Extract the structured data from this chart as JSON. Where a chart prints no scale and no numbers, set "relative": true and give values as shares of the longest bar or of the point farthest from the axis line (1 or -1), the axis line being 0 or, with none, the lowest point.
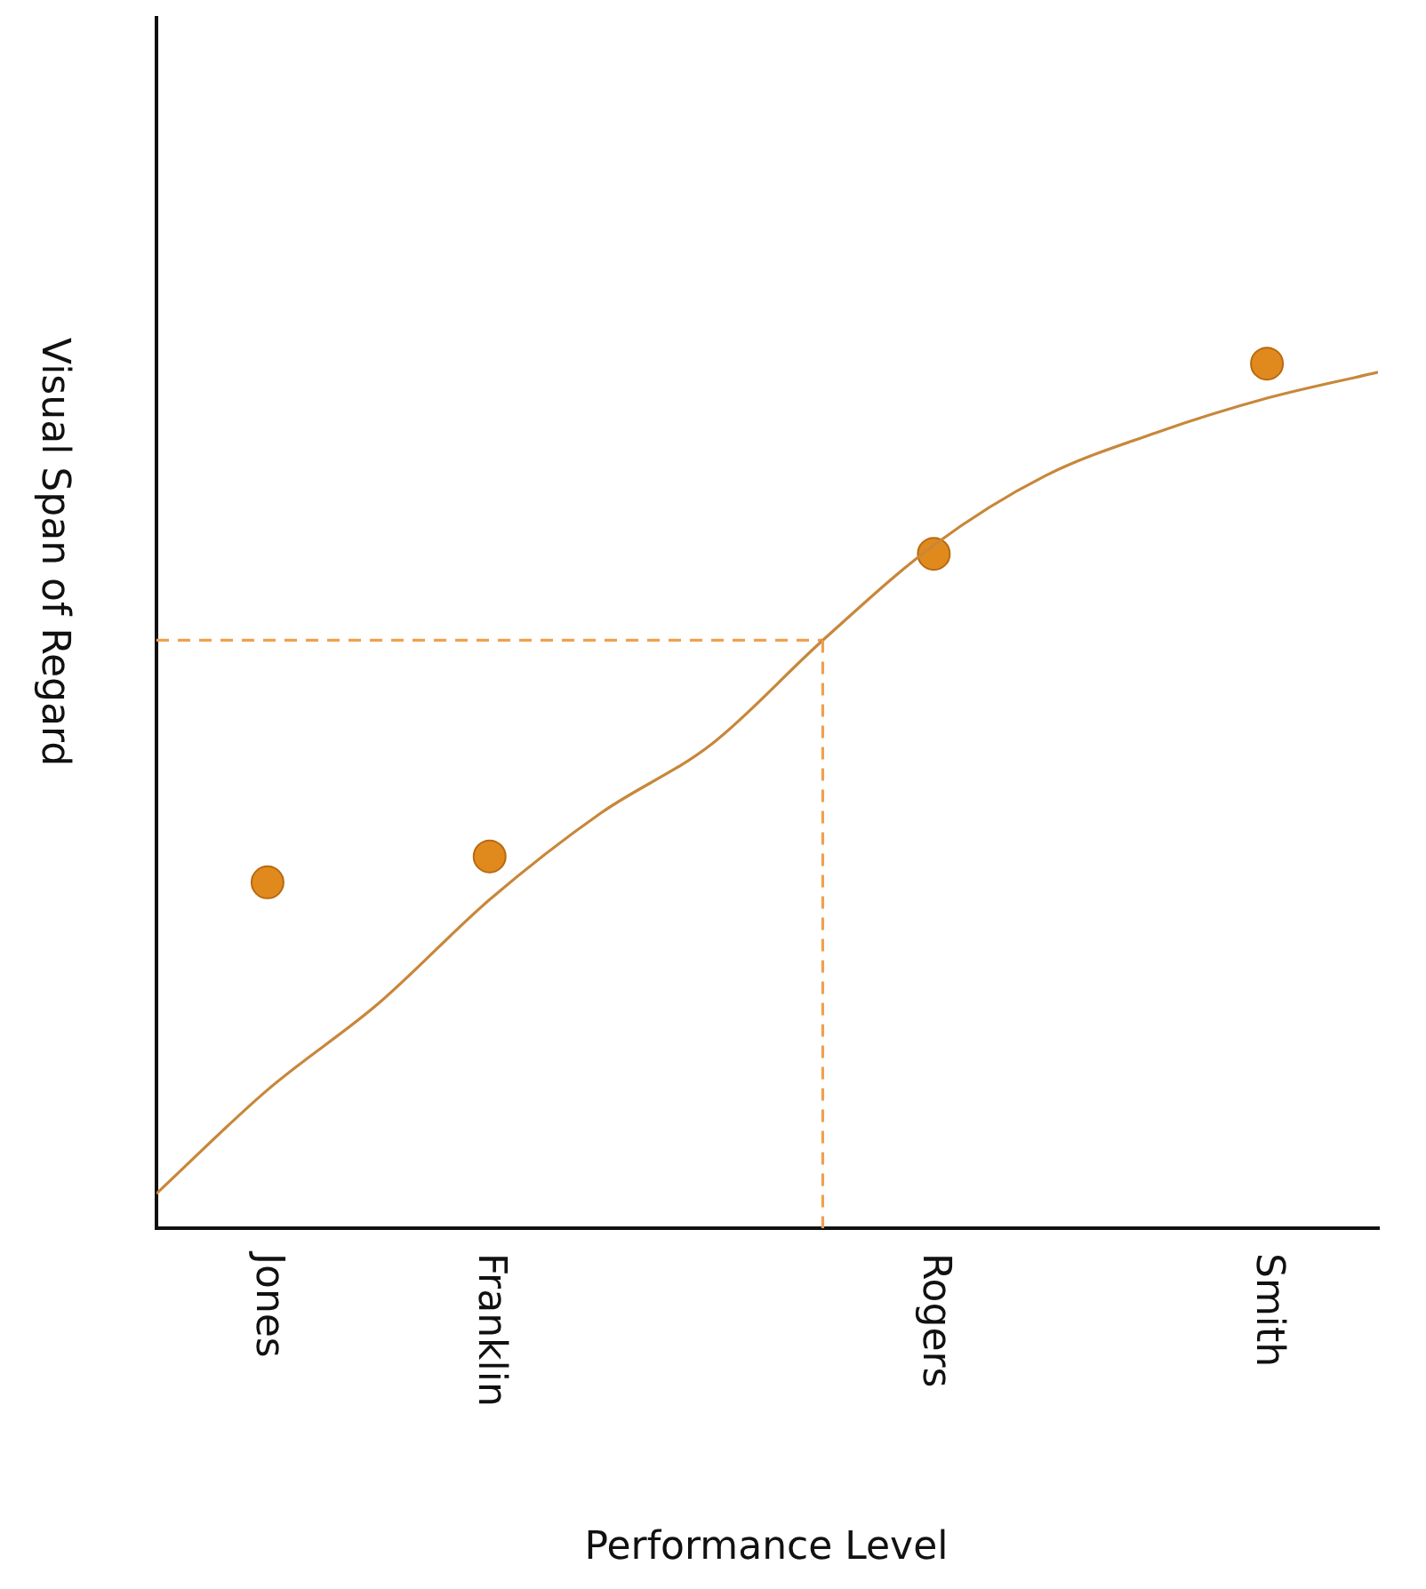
{
  "chart_data": {
    "type": "scatter",
    "xlabel": "Performance Level",
    "ylabel": "Visual Span of Regard",
    "relative": true,
    "legend": false,
    "grid": false,
    "categories": [
      null,
      "Jones",
      null,
      "Franklin",
      null,
      null,
      null,
      "Rogers",
      null,
      null,
      "Smith",
      null
    ],
    "series": [
      {
        "type": "line",
        "color": "#c8873a",
        "marker": "none",
        "values": [
          0.04,
          0.16,
          0.26,
          0.38,
          0.48,
          0.56,
          0.68,
          0.79,
          0.87,
          0.92,
          0.96,
          0.99
        ]
      },
      {
        "color": "#e08a1e",
        "marker": "circle",
        "values": [
          null,
          0.4,
          null,
          0.43,
          null,
          null,
          null,
          0.78,
          null,
          null,
          1,
          null
        ]
      },
      {
        "type": "line",
        "color": "#f0a050",
        "marker": "none",
        "line_style": "dashed",
        "values": [
          0.68,
          0.68,
          0.68,
          0.68,
          0.68,
          0.68,
          0.68,
          null,
          null,
          null,
          null,
          null
        ]
      }
    ]
  }
}
